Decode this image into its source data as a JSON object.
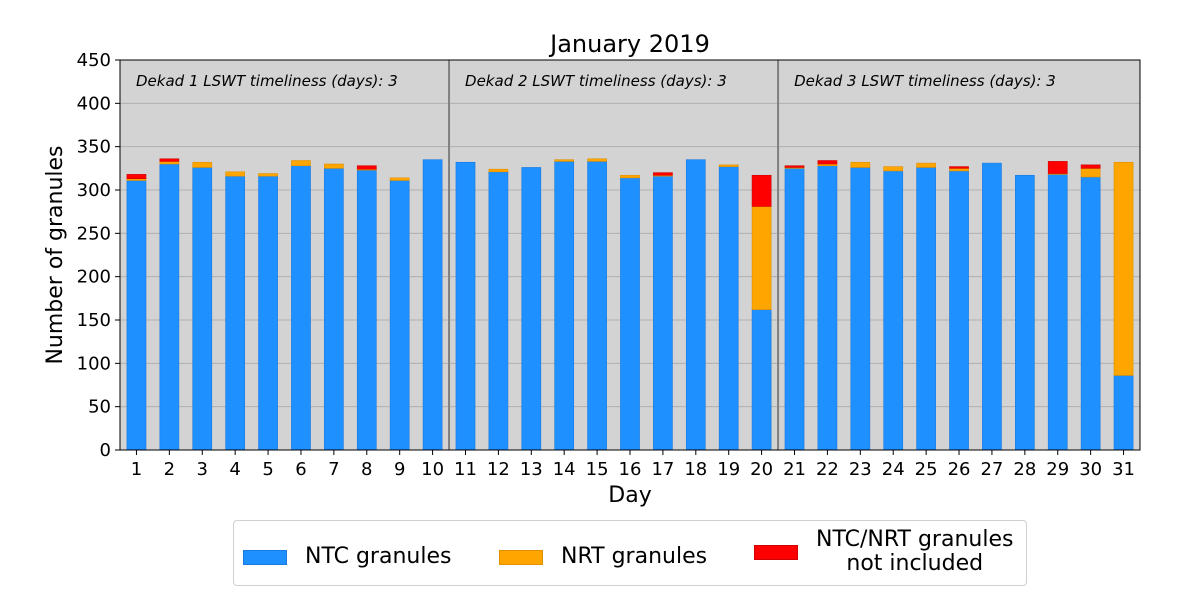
{
  "colors": {
    "ntc": "#1e90ff",
    "nrt": "#ffa500",
    "excluded": "#ff0000",
    "plot_bg": "#d3d3d3",
    "grid": "#b0b0b0",
    "divider": "#808080"
  },
  "legend": {
    "ntc_label": "NTC granules",
    "nrt_label": "NRT granules",
    "excluded_label_line1": "NTC/NRT granules",
    "excluded_label_line2": "not included"
  },
  "chart_data": {
    "type": "bar",
    "stacked": true,
    "title": "January 2019",
    "xlabel": "Day",
    "ylabel": "Number of granules",
    "ylim": [
      0,
      450
    ],
    "yticks": [
      0,
      50,
      100,
      150,
      200,
      250,
      300,
      350,
      400,
      450
    ],
    "grid": true,
    "legend_position": "bottom-center",
    "categories": [
      "1",
      "2",
      "3",
      "4",
      "5",
      "6",
      "7",
      "8",
      "9",
      "10",
      "11",
      "12",
      "13",
      "14",
      "15",
      "16",
      "17",
      "18",
      "19",
      "20",
      "21",
      "22",
      "23",
      "24",
      "25",
      "26",
      "27",
      "28",
      "29",
      "30",
      "31"
    ],
    "series": [
      {
        "name": "NTC granules",
        "color": "#1e90ff",
        "values": [
          311,
          330,
          326,
          316,
          316,
          328,
          325,
          323,
          311,
          335,
          332,
          321,
          326,
          333,
          333,
          314,
          316,
          335,
          327,
          162,
          325,
          328,
          326,
          322,
          326,
          322,
          331,
          317,
          318,
          315,
          86
        ]
      },
      {
        "name": "NRT granules",
        "color": "#ffa500",
        "values": [
          2,
          3,
          6,
          5,
          3,
          6,
          5,
          1,
          3,
          0,
          0,
          3,
          0,
          2,
          3,
          3,
          1,
          0,
          2,
          119,
          1,
          2,
          6,
          5,
          5,
          3,
          0,
          0,
          1,
          10,
          246
        ]
      },
      {
        "name": "NTC/NRT granules not included",
        "color": "#ff0000",
        "values": [
          5,
          3,
          0,
          0,
          0,
          0,
          0,
          4,
          0,
          0,
          0,
          0,
          0,
          0,
          0,
          0,
          3,
          0,
          0,
          36,
          2,
          4,
          0,
          0,
          0,
          2,
          0,
          0,
          14,
          4,
          0
        ]
      }
    ],
    "dekads": [
      {
        "label": "Dekad 1 LSWT timeliness (days): 3",
        "start_day": 1,
        "end_day": 10
      },
      {
        "label": "Dekad 2 LSWT timeliness (days): 3",
        "start_day": 11,
        "end_day": 20
      },
      {
        "label": "Dekad 3 LSWT timeliness (days): 3",
        "start_day": 21,
        "end_day": 31
      }
    ]
  }
}
